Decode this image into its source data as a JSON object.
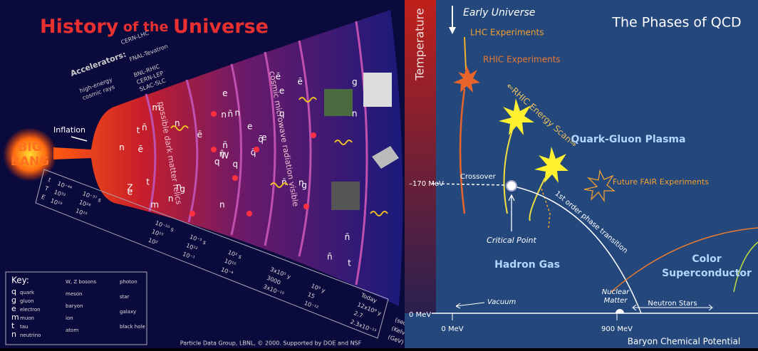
{
  "left": {
    "title": [
      "History",
      " of the ",
      "Universe"
    ],
    "big_bang": [
      "BIG",
      "BANG"
    ],
    "inflation": "Inflation",
    "accelerators_label": "Accelerators:",
    "accelerators": [
      "CERN-LHC",
      "FNAL-Tevatron",
      "BNL-RHIC",
      "CERN-LEP",
      "SLAC-SLC",
      "high-energy",
      "cosmic rays"
    ],
    "eras": [
      "possible dark matter relics",
      "cosmic microwave radiation visible"
    ],
    "particles": [
      "q",
      "t",
      "W",
      "Z",
      "q̄",
      "g",
      "ē",
      "n",
      "e",
      "q̄",
      "m",
      "t",
      "ē",
      "g",
      "q",
      "q",
      "m",
      "n",
      "e",
      "t",
      "ē",
      "e",
      "n",
      "n̄",
      "e",
      "g",
      "n̄",
      "e",
      "n",
      "n̄",
      "n",
      "n̄",
      "n",
      "n̄",
      "n",
      "ē",
      "n",
      "n̄",
      "n̄",
      "n"
    ],
    "scale": {
      "row_names": [
        "t",
        "T",
        "E"
      ],
      "columns": [
        [
          "10⁻⁴⁴",
          "10³²",
          "10¹⁹"
        ],
        [
          "10⁻³⁷ s",
          "10²⁸",
          "10¹⁵"
        ],
        [
          "10⁻¹⁰ s",
          "10¹⁵",
          "10²"
        ],
        [
          "10⁻⁵ s",
          "10¹²",
          "10⁻¹"
        ],
        [
          "10² s",
          "10¹⁰",
          "10⁻⁴"
        ],
        [
          "3x10⁵ y",
          "3000",
          "3x10⁻¹⁰"
        ],
        [
          "10⁹ y",
          "15",
          "10⁻¹²"
        ],
        [
          "12x10⁹ y",
          "2.7",
          "2.3x10⁻¹³"
        ]
      ],
      "today": "Today",
      "units": [
        "(sec, yrs)",
        "(Kelvin)",
        "(GeV)"
      ]
    },
    "key": {
      "title": "Key:",
      "col1": [
        [
          "q",
          "quark"
        ],
        [
          "g",
          "gluon"
        ],
        [
          "e",
          "electron"
        ],
        [
          "m",
          "muon"
        ],
        [
          "t",
          "tau"
        ],
        [
          "n",
          "neutrino"
        ]
      ],
      "col2": [
        "W, Z bosons",
        "meson",
        "baryon",
        "ion",
        "atom"
      ],
      "col3": [
        "photon",
        "star",
        "galaxy",
        "black hole"
      ]
    },
    "credit": "Particle Data Group, LBNL, © 2000.   Supported by DOE and NSF"
  },
  "right": {
    "title": "The Phases of QCD",
    "early_universe": "Early Universe",
    "y_axis": "Temperature",
    "x_axis": "Baryon Chemical Potential",
    "lhc": "LHC Experiments",
    "rhic": "RHIC Experiments",
    "energy_scan": "⇐RHIC Energy Scan⇒",
    "qgp": "Quark-Gluon Plasma",
    "fair": "Future FAIR Experiments",
    "crossover": "Crossover",
    "t170": "–170 MeV",
    "critical_point": "Critical Point",
    "transition": "1st order phase transition",
    "hadron_gas": "Hadron Gas",
    "color_sc": [
      "Color",
      "Superconductor"
    ],
    "nuclear_matter": [
      "Nuclear",
      "Matter"
    ],
    "neutron_stars": "Neutron Stars",
    "vacuum": "Vacuum",
    "t0": "0 MeV",
    "mu0": "0 MeV",
    "mu900": "900 MeV"
  }
}
